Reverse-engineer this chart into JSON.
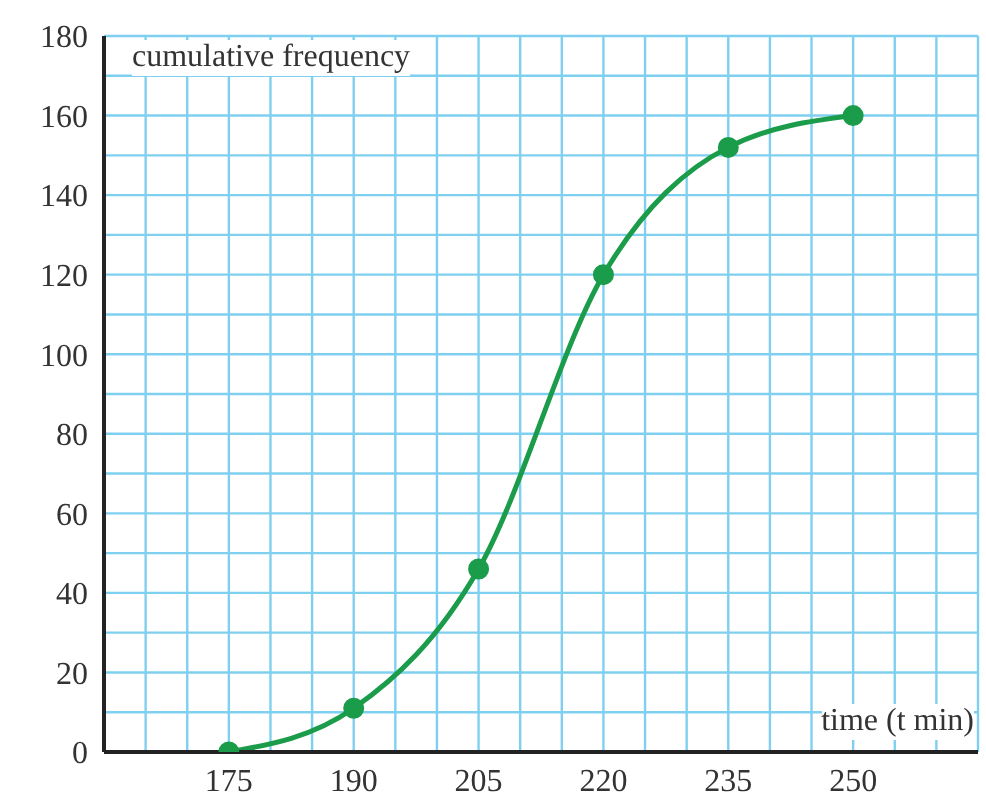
{
  "chart_data": {
    "type": "line",
    "xlabel": "time (t min)",
    "ylabel": "cumulative frequency",
    "x": [
      175,
      190,
      205,
      220,
      235,
      250
    ],
    "series": [
      {
        "color": "#1a9c4a",
        "values": [
          0,
          11,
          46,
          120,
          152,
          160
        ]
      }
    ],
    "xlim": [
      160,
      265
    ],
    "xticks": [
      {
        "value": 160,
        "label": null
      },
      {
        "value": 165,
        "label": null
      },
      {
        "value": 170,
        "label": null
      },
      175,
      {
        "value": 180,
        "label": null
      },
      {
        "value": 185,
        "label": null
      },
      190,
      {
        "value": 195,
        "label": null
      },
      {
        "value": 200,
        "label": null
      },
      205,
      {
        "value": 210,
        "label": null
      },
      {
        "value": 215,
        "label": null
      },
      220,
      {
        "value": 225,
        "label": null
      },
      {
        "value": 230,
        "label": null
      },
      235,
      {
        "value": 240,
        "label": null
      },
      {
        "value": 245,
        "label": null
      },
      250,
      {
        "value": 255,
        "label": null
      },
      {
        "value": 260,
        "label": null
      },
      {
        "value": 265,
        "label": null
      }
    ],
    "ylim": [
      0,
      180
    ],
    "yticks": [
      0,
      {
        "value": 10,
        "label": null
      },
      20,
      {
        "value": 30,
        "label": null
      },
      40,
      {
        "value": 50,
        "label": null
      },
      60,
      {
        "value": 70,
        "label": null
      },
      80,
      {
        "value": 90,
        "label": null
      },
      100,
      {
        "value": 110,
        "label": null
      },
      120,
      {
        "value": 130,
        "label": null
      },
      140,
      {
        "value": 150,
        "label": null
      },
      160,
      {
        "value": 170,
        "label": null
      },
      180
    ],
    "grid": true,
    "marker": "circle",
    "line_style": "solid"
  }
}
